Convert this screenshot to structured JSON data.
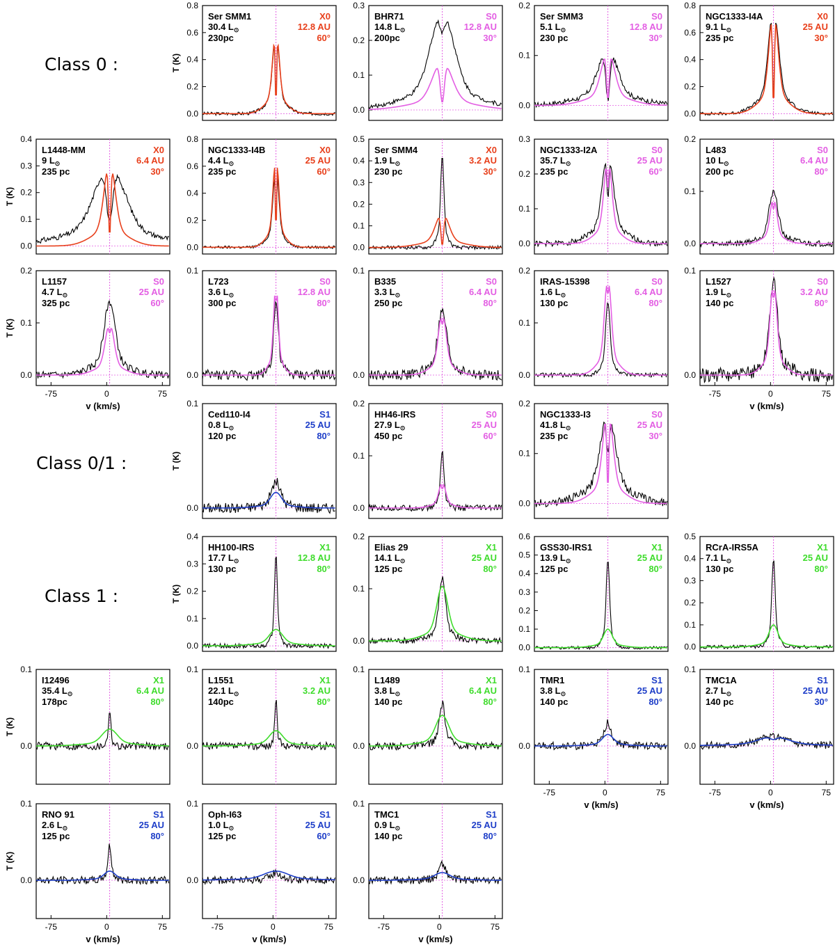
{
  "figure": {
    "row_labels": [
      {
        "text": "Class 0 :"
      },
      {
        "text": "Class 0/1 :"
      },
      {
        "text": "Class 1 :"
      }
    ],
    "colors": {
      "X0": "#e8401c",
      "S0": "#e35ee3",
      "S1": "#1e3ec8",
      "X1": "#3fdc2c",
      "observed": "#000000",
      "guide": "#e35ee3"
    }
  },
  "chart_data": [
    {
      "type": "line",
      "source": "Ser SMM1",
      "lum": "30.4",
      "dist": "230pc",
      "model": "X0",
      "radius": "12.8 AU",
      "incl": "60°",
      "ylim": [
        -0.05,
        0.8
      ],
      "yticks": [
        "0.0",
        "0.2",
        "0.4",
        "0.6",
        "0.8"
      ],
      "ylabel": "T (K)",
      "xlabel": "",
      "xlim": [
        -95,
        85
      ],
      "xticks": [],
      "xticklabels": [],
      "model_peak": 0.62,
      "model_width": 6,
      "model_dip": 0.95,
      "obs_peak": 0.58,
      "obs_width": 6,
      "obs_dip": 0.85,
      "noise": 0.012
    },
    {
      "type": "line",
      "source": "BHR71",
      "lum": "14.8",
      "dist": "200pc",
      "model": "S0",
      "radius": "12.8 AU",
      "incl": "30°",
      "ylim": [
        -0.03,
        0.3
      ],
      "yticks": [
        "0.0",
        "0.1",
        "0.2",
        "0.3"
      ],
      "ylabel": "",
      "xlabel": "",
      "xlim": [
        -95,
        85
      ],
      "xticks": [],
      "xticklabels": [],
      "model_peak": 0.14,
      "model_width": 18,
      "model_dip": 0.85,
      "obs_peak": 0.28,
      "obs_width": 22,
      "obs_dip": 0.2,
      "noise": 0.006
    },
    {
      "type": "line",
      "source": "Ser SMM3",
      "lum": "5.1",
      "dist": "230 pc",
      "model": "S0",
      "radius": "12.8 AU",
      "incl": "30°",
      "ylim": [
        -0.03,
        0.2
      ],
      "yticks": [
        "0.0",
        "0.1",
        "0.2"
      ],
      "ylabel": "",
      "xlabel": "",
      "xlim": [
        -95,
        85
      ],
      "xticks": [],
      "xticklabels": [],
      "model_peak": 0.11,
      "model_width": 12,
      "model_dip": 0.9,
      "obs_peak": 0.11,
      "obs_width": 18,
      "obs_dip": 0.9,
      "noise": 0.005
    },
    {
      "type": "line",
      "source": "NGC1333-I4A",
      "lum": "9.1",
      "dist": "235 pc",
      "model": "X0",
      "radius": "25 AU",
      "incl": "30°",
      "ylim": [
        -0.05,
        0.8
      ],
      "yticks": [
        "0.0",
        "0.2",
        "0.4",
        "0.6",
        "0.8"
      ],
      "ylabel": "",
      "xlabel": "",
      "xlim": [
        -95,
        85
      ],
      "xticks": [],
      "xticklabels": [],
      "model_peak": 0.78,
      "model_width": 8,
      "model_dip": 0.95,
      "obs_peak": 0.8,
      "obs_width": 9,
      "obs_dip": 0.85,
      "noise": 0.012
    },
    {
      "type": "line",
      "source": "L1448-MM",
      "lum": "9",
      "dist": "235 pc",
      "model": "X0",
      "radius": "6.4 AU",
      "incl": "30°",
      "ylim": [
        -0.03,
        0.4
      ],
      "yticks": [
        "0.0",
        "0.1",
        "0.2",
        "0.3",
        "0.4"
      ],
      "ylabel": "T (K)",
      "xlabel": "",
      "xlim": [
        -95,
        85
      ],
      "xticks": [],
      "xticklabels": [],
      "model_peak": 0.32,
      "model_width": 10,
      "model_dip": 0.9,
      "obs_peak": 0.3,
      "obs_width": 28,
      "obs_dip": 0.7,
      "noise": 0.01
    },
    {
      "type": "line",
      "source": "NGC1333-I4B",
      "lum": "4.4",
      "dist": "235 pc",
      "model": "X0",
      "radius": "25 AU",
      "incl": "60°",
      "ylim": [
        -0.05,
        0.8
      ],
      "yticks": [
        "0.0",
        "0.2",
        "0.4",
        "0.6",
        "0.8"
      ],
      "ylabel": "",
      "xlabel": "",
      "xlim": [
        -95,
        85
      ],
      "xticks": [],
      "xticklabels": [],
      "model_peak": 0.7,
      "model_width": 5,
      "model_dip": 0.95,
      "obs_peak": 0.6,
      "obs_width": 5,
      "obs_dip": 0.8,
      "noise": 0.01
    },
    {
      "type": "line",
      "source": "Ser SMM4",
      "lum": "1.9",
      "dist": "230 pc",
      "model": "X0",
      "radius": "3.2 AU",
      "incl": "30°",
      "ylim": [
        -0.03,
        0.5
      ],
      "yticks": [
        "0.0",
        "0.1",
        "0.2",
        "0.3",
        "0.4",
        "0.5"
      ],
      "ylabel": "",
      "xlabel": "",
      "xlim": [
        -95,
        85
      ],
      "xticks": [],
      "xticklabels": [],
      "model_peak": 0.16,
      "model_width": 12,
      "model_dip": 0.95,
      "obs_peak": 0.42,
      "obs_width": 3,
      "obs_dip": 0.0,
      "noise": 0.008
    },
    {
      "type": "line",
      "source": "NGC1333-I2A",
      "lum": "35.7",
      "dist": "235 pc",
      "model": "S0",
      "radius": "25 AU",
      "incl": "60°",
      "ylim": [
        -0.03,
        0.3
      ],
      "yticks": [
        "0.0",
        "0.1",
        "0.2",
        "0.3"
      ],
      "ylabel": "",
      "xlabel": "",
      "xlim": [
        -95,
        85
      ],
      "xticks": [],
      "xticklabels": [],
      "model_peak": 0.25,
      "model_width": 7,
      "model_dip": 0.4,
      "obs_peak": 0.26,
      "obs_width": 10,
      "obs_dip": 0.5,
      "noise": 0.008
    },
    {
      "type": "line",
      "source": "L483",
      "lum": "10",
      "dist": "200 pc",
      "model": "S0",
      "radius": "6.4 AU",
      "incl": "80°",
      "ylim": [
        -0.02,
        0.2
      ],
      "yticks": [
        "0.0",
        "0.1",
        "0.2"
      ],
      "ylabel": "",
      "xlabel": "",
      "xlim": [
        -95,
        85
      ],
      "xticks": [],
      "xticklabels": [],
      "model_peak": 0.09,
      "model_width": 6,
      "model_dip": 0.3,
      "obs_peak": 0.1,
      "obs_width": 8,
      "obs_dip": 0.0,
      "noise": 0.006
    },
    {
      "type": "line",
      "source": "L1157",
      "lum": "4.7",
      "dist": "325 pc",
      "model": "S0",
      "radius": "25 AU",
      "incl": "60°",
      "ylim": [
        -0.02,
        0.2
      ],
      "yticks": [
        "0.0",
        "0.1",
        "0.2"
      ],
      "ylabel": "T (K)",
      "xlabel": "v (km/s)",
      "xlim": [
        -95,
        85
      ],
      "xticks": [
        -75,
        0,
        75
      ],
      "xticklabels": [
        "-75",
        "0",
        "75"
      ],
      "model_peak": 0.1,
      "model_width": 8,
      "model_dip": 0.2,
      "obs_peak": 0.14,
      "obs_width": 10,
      "obs_dip": 0.0,
      "noise": 0.007
    },
    {
      "type": "line",
      "source": "L723",
      "lum": "3.6",
      "dist": "300 pc",
      "model": "S0",
      "radius": "12.8 AU",
      "incl": "80°",
      "ylim": [
        -0.01,
        0.1
      ],
      "yticks": [
        "0.0",
        "0.1"
      ],
      "ylabel": "",
      "xlabel": "",
      "xlim": [
        -95,
        85
      ],
      "xticks": [],
      "xticklabels": [],
      "model_peak": 0.09,
      "model_width": 4,
      "model_dip": 0.3,
      "obs_peak": 0.07,
      "obs_width": 4,
      "obs_dip": 0.0,
      "noise": 0.005
    },
    {
      "type": "line",
      "source": "B335",
      "lum": "3.3",
      "dist": "250 pc",
      "model": "S0",
      "radius": "6.4 AU",
      "incl": "80°",
      "ylim": [
        -0.01,
        0.1
      ],
      "yticks": [
        "0.0",
        "0.1"
      ],
      "ylabel": "",
      "xlabel": "",
      "xlim": [
        -95,
        85
      ],
      "xticks": [],
      "xticklabels": [],
      "model_peak": 0.06,
      "model_width": 7,
      "model_dip": 0.2,
      "obs_peak": 0.06,
      "obs_width": 8,
      "obs_dip": 0.0,
      "noise": 0.005
    },
    {
      "type": "line",
      "source": "IRAS-15398",
      "lum": "1.6",
      "dist": "130 pc",
      "model": "S0",
      "radius": "6.4 AU",
      "incl": "80°",
      "ylim": [
        -0.02,
        0.2
      ],
      "yticks": [
        "0.0",
        "0.1",
        "0.2"
      ],
      "ylabel": "",
      "xlabel": "",
      "xlim": [
        -95,
        85
      ],
      "xticks": [],
      "xticklabels": [],
      "model_peak": 0.19,
      "model_width": 6,
      "model_dip": 0.2,
      "obs_peak": 0.14,
      "obs_width": 4,
      "obs_dip": 0.0,
      "noise": 0.004
    },
    {
      "type": "line",
      "source": "L1527",
      "lum": "1.9",
      "dist": "140 pc",
      "model": "S0",
      "radius": "3.2 AU",
      "incl": "80°",
      "ylim": [
        -0.01,
        0.1
      ],
      "yticks": [
        "0.0",
        "0.1"
      ],
      "ylabel": "",
      "xlabel": "v (km/s)",
      "xlim": [
        -95,
        85
      ],
      "xticks": [
        -75,
        0,
        75
      ],
      "xticklabels": [
        "-75",
        "0",
        "75"
      ],
      "model_peak": 0.09,
      "model_width": 6,
      "model_dip": 0.2,
      "obs_peak": 0.09,
      "obs_width": 7,
      "obs_dip": 0.0,
      "noise": 0.007
    },
    {
      "type": "line",
      "source": "Ced110-I4",
      "lum": "0.8",
      "dist": "120 pc",
      "model": "S1",
      "radius": "25 AU",
      "incl": "80°",
      "ylim": [
        -0.01,
        0.1
      ],
      "yticks": [
        "0.0",
        "0.1"
      ],
      "ylabel": "T (K)",
      "xlabel": "",
      "xlim": [
        -95,
        85
      ],
      "xticks": [],
      "xticklabels": [],
      "model_peak": 0.015,
      "model_width": 10,
      "model_dip": 0.0,
      "obs_peak": 0.025,
      "obs_width": 8,
      "obs_dip": 0.0,
      "noise": 0.005
    },
    {
      "type": "line",
      "source": "HH46-IRS",
      "lum": "27.9",
      "dist": "450 pc",
      "model": "S0",
      "radius": "25 AU",
      "incl": "60°",
      "ylim": [
        -0.02,
        0.2
      ],
      "yticks": [
        "0.0",
        "0.1",
        "0.2"
      ],
      "ylabel": "",
      "xlabel": "",
      "xlim": [
        -95,
        85
      ],
      "xticks": [],
      "xticklabels": [],
      "model_peak": 0.05,
      "model_width": 6,
      "model_dip": 0.3,
      "obs_peak": 0.11,
      "obs_width": 3,
      "obs_dip": 0.0,
      "noise": 0.006
    },
    {
      "type": "line",
      "source": "NGC1333-I3",
      "lum": "41.8",
      "dist": "235 pc",
      "model": "S0",
      "radius": "25 AU",
      "incl": "30°",
      "ylim": [
        -0.03,
        0.2
      ],
      "yticks": [
        "0.0",
        "0.1",
        "0.2"
      ],
      "ylabel": "",
      "xlabel": "",
      "xlim": [
        -95,
        85
      ],
      "xticks": [],
      "xticklabels": [],
      "model_peak": 0.19,
      "model_width": 9,
      "model_dip": 0.85,
      "obs_peak": 0.18,
      "obs_width": 14,
      "obs_dip": 0.4,
      "noise": 0.008
    },
    {
      "type": "line",
      "source": "HH100-IRS",
      "lum": "17.7",
      "dist": "130 pc",
      "model": "X1",
      "radius": "12.8 AU",
      "incl": "80°",
      "ylim": [
        -0.02,
        0.4
      ],
      "yticks": [
        "0.0",
        "0.1",
        "0.2",
        "0.3",
        "0.4"
      ],
      "ylabel": "T (K)",
      "xlabel": "",
      "xlim": [
        -95,
        85
      ],
      "xticks": [],
      "xticklabels": [],
      "model_peak": 0.06,
      "model_width": 12,
      "model_dip": 0.0,
      "obs_peak": 0.34,
      "obs_width": 2.5,
      "obs_dip": 0.0,
      "noise": 0.008
    },
    {
      "type": "line",
      "source": "Elias 29",
      "lum": "14.1",
      "dist": "125 pc",
      "model": "X1",
      "radius": "25 AU",
      "incl": "80°",
      "ylim": [
        -0.02,
        0.2
      ],
      "yticks": [
        "0.0",
        "0.1",
        "0.2"
      ],
      "ylabel": "",
      "xlabel": "",
      "xlim": [
        -95,
        85
      ],
      "xticks": [],
      "xticklabels": [],
      "model_peak": 0.105,
      "model_width": 10,
      "model_dip": 0.0,
      "obs_peak": 0.12,
      "obs_width": 6,
      "obs_dip": 0.0,
      "noise": 0.006
    },
    {
      "type": "line",
      "source": "GSS30-IRS1",
      "lum": "13.9",
      "dist": "125 pc",
      "model": "X1",
      "radius": "25 AU",
      "incl": "80°",
      "ylim": [
        -0.02,
        0.6
      ],
      "yticks": [
        "0.0",
        "0.1",
        "0.2",
        "0.3",
        "0.4",
        "0.5",
        "0.6"
      ],
      "ylabel": "",
      "xlabel": "",
      "xlim": [
        -95,
        85
      ],
      "xticks": [],
      "xticklabels": [],
      "model_peak": 0.1,
      "model_width": 8,
      "model_dip": 0.0,
      "obs_peak": 0.48,
      "obs_width": 3,
      "obs_dip": 0.0,
      "noise": 0.008
    },
    {
      "type": "line",
      "source": "RCrA-IRS5A",
      "lum": "7.1",
      "dist": "130 pc",
      "model": "X1",
      "radius": "25 AU",
      "incl": "80°",
      "ylim": [
        -0.02,
        0.5
      ],
      "yticks": [
        "0.0",
        "0.1",
        "0.2",
        "0.3",
        "0.4",
        "0.5"
      ],
      "ylabel": "",
      "xlabel": "",
      "xlim": [
        -95,
        85
      ],
      "xticks": [],
      "xticklabels": [],
      "model_peak": 0.1,
      "model_width": 8,
      "model_dip": 0.0,
      "obs_peak": 0.4,
      "obs_width": 3,
      "obs_dip": 0.0,
      "noise": 0.008
    },
    {
      "type": "line",
      "source": "I12496",
      "lum": "35.4",
      "dist": "178pc",
      "model": "X1",
      "radius": "6.4 AU",
      "incl": "80°",
      "ylim": [
        -0.05,
        0.1
      ],
      "yticks": [
        "0.0",
        "0.1"
      ],
      "ylabel": "T (K)",
      "xlabel": "",
      "xlim": [
        -95,
        85
      ],
      "xticks": [],
      "xticklabels": [],
      "model_peak": 0.022,
      "model_width": 14,
      "model_dip": 0.0,
      "obs_peak": 0.05,
      "obs_width": 2,
      "obs_dip": 0.0,
      "noise": 0.005
    },
    {
      "type": "line",
      "source": "L1551",
      "lum": "22.1",
      "dist": "140pc",
      "model": "X1",
      "radius": "3.2 AU",
      "incl": "80°",
      "ylim": [
        -0.05,
        0.1
      ],
      "yticks": [
        "0.0",
        "0.1"
      ],
      "ylabel": "",
      "xlabel": "",
      "xlim": [
        -95,
        85
      ],
      "xticks": [],
      "xticklabels": [],
      "model_peak": 0.02,
      "model_width": 12,
      "model_dip": 0.0,
      "obs_peak": 0.065,
      "obs_width": 1.8,
      "obs_dip": 0.0,
      "noise": 0.005
    },
    {
      "type": "line",
      "source": "L1489",
      "lum": "3.8",
      "dist": "140 pc",
      "model": "X1",
      "radius": "6.4 AU",
      "incl": "80°",
      "ylim": [
        -0.05,
        0.1
      ],
      "yticks": [
        "0.0",
        "0.1"
      ],
      "ylabel": "",
      "xlabel": "",
      "xlim": [
        -95,
        85
      ],
      "xticks": [],
      "xticklabels": [],
      "model_peak": 0.04,
      "model_width": 12,
      "model_dip": 0.0,
      "obs_peak": 0.055,
      "obs_width": 5,
      "obs_dip": 0.0,
      "noise": 0.005
    },
    {
      "type": "line",
      "source": "TMR1",
      "lum": "3.8",
      "dist": "140 pc",
      "model": "S1",
      "radius": "25 AU",
      "incl": "80°",
      "ylim": [
        -0.05,
        0.1
      ],
      "yticks": [
        "0.0",
        "0.1"
      ],
      "ylabel": "",
      "xlabel": "v (km/s)",
      "xlim": [
        -95,
        85
      ],
      "xticks": [
        -75,
        0,
        75
      ],
      "xticklabels": [
        "-75",
        "0",
        "75"
      ],
      "model_peak": 0.015,
      "model_width": 10,
      "model_dip": 0.0,
      "obs_peak": 0.03,
      "obs_width": 6,
      "obs_dip": 0.0,
      "noise": 0.005
    },
    {
      "type": "line",
      "source": "TMC1A",
      "lum": "2.7",
      "dist": "140 pc",
      "model": "S1",
      "radius": "25 AU",
      "incl": "30°",
      "ylim": [
        -0.05,
        0.1
      ],
      "yticks": [
        "0.0",
        "0.1"
      ],
      "ylabel": "",
      "xlabel": "v (km/s)",
      "xlim": [
        -95,
        85
      ],
      "xticks": [
        -75,
        0,
        75
      ],
      "xticklabels": [
        "-75",
        "0",
        "75"
      ],
      "model_peak": 0.012,
      "model_width": 28,
      "model_dip": 0.3,
      "obs_peak": 0.012,
      "obs_width": 26,
      "obs_dip": 0.0,
      "noise": 0.005
    },
    {
      "type": "line",
      "source": "RNO 91",
      "lum": "2.6",
      "dist": "125 pc",
      "model": "S1",
      "radius": "25 AU",
      "incl": "80°",
      "ylim": [
        -0.05,
        0.1
      ],
      "yticks": [
        "0.0",
        "0.1"
      ],
      "ylabel": "T (K)",
      "xlabel": "v (km/s)",
      "xlim": [
        -95,
        85
      ],
      "xticks": [
        -75,
        0,
        75
      ],
      "xticklabels": [
        "-75",
        "0",
        "75"
      ],
      "model_peak": 0.012,
      "model_width": 10,
      "model_dip": 0.0,
      "obs_peak": 0.045,
      "obs_width": 3,
      "obs_dip": 0.0,
      "noise": 0.005
    },
    {
      "type": "line",
      "source": "Oph-I63",
      "lum": "1.0",
      "dist": "125 pc",
      "model": "S1",
      "radius": "25 AU",
      "incl": "60°",
      "ylim": [
        -0.05,
        0.1
      ],
      "yticks": [
        "0.0",
        "0.1"
      ],
      "ylabel": "",
      "xlabel": "v (km/s)",
      "xlim": [
        -95,
        85
      ],
      "xticks": [
        -75,
        0,
        75
      ],
      "xticklabels": [
        "-75",
        "0",
        "75"
      ],
      "model_peak": 0.012,
      "model_width": 22,
      "model_dip": 0.0,
      "obs_peak": 0.01,
      "obs_width": 8,
      "obs_dip": 0.0,
      "noise": 0.005
    },
    {
      "type": "line",
      "source": "TMC1",
      "lum": "0.9",
      "dist": "140 pc",
      "model": "S1",
      "radius": "25 AU",
      "incl": "80°",
      "ylim": [
        -0.05,
        0.1
      ],
      "yticks": [
        "0.0",
        "0.1"
      ],
      "ylabel": "",
      "xlabel": "v (km/s)",
      "xlim": [
        -95,
        85
      ],
      "xticks": [
        -75,
        0,
        75
      ],
      "xticklabels": [
        "-75",
        "0",
        "75"
      ],
      "model_peak": 0.01,
      "model_width": 14,
      "model_dip": 0.0,
      "obs_peak": 0.022,
      "obs_width": 6,
      "obs_dip": 0.0,
      "noise": 0.005
    }
  ]
}
